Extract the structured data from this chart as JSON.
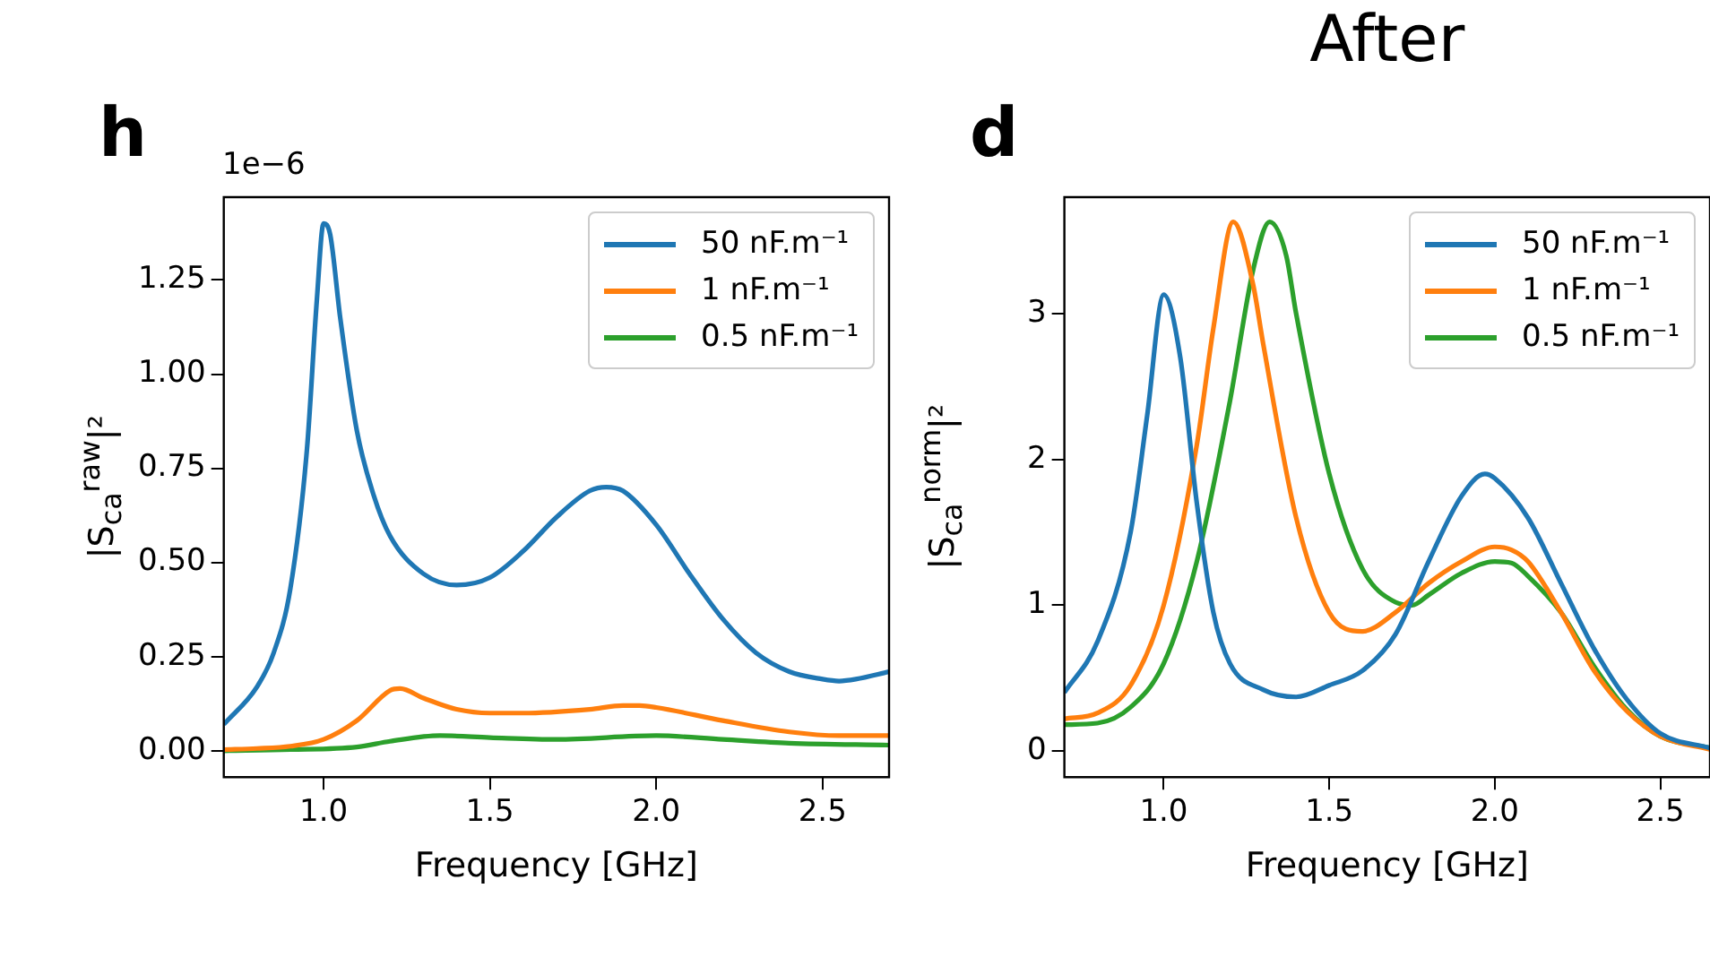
{
  "chart_data": [
    {
      "type": "line",
      "annotations": [
        "h",
        "1e−6"
      ],
      "xlabel": "Frequency [GHz]",
      "ylabel": "|S$_{ca}$$^{raw}$|²",
      "xlim": [
        0.7,
        2.7
      ],
      "ylim": [
        -0.07,
        1.47
      ],
      "xticks": [
        {
          "value": 1,
          "label": "1.0"
        },
        {
          "value": 1.5,
          "label": "1.5"
        },
        {
          "value": 2,
          "label": "2.0"
        },
        {
          "value": 2.5,
          "label": "2.5"
        }
      ],
      "yticks": [
        {
          "value": 0,
          "label": "0.00"
        },
        {
          "value": 0.25,
          "label": "0.25"
        },
        {
          "value": 0.5,
          "label": "0.50"
        },
        {
          "value": 0.75,
          "label": "0.75"
        },
        {
          "value": 1,
          "label": "1.00"
        },
        {
          "value": 1.25,
          "label": "1.25"
        }
      ],
      "grid": false,
      "legend": "top right",
      "marker": "none",
      "line_style": "solid",
      "series": [
        {
          "name": "50 nF.m⁻¹",
          "color": "#1f77b4",
          "x": [
            0.7,
            0.8,
            0.85,
            0.9,
            0.95,
            0.98,
            1.0,
            1.02,
            1.05,
            1.1,
            1.15,
            1.2,
            1.3,
            1.4,
            1.5,
            1.6,
            1.7,
            1.8,
            1.85,
            1.9,
            2.0,
            2.1,
            2.2,
            2.3,
            2.4,
            2.5,
            2.55,
            2.6,
            2.7
          ],
          "values": [
            0.07,
            0.17,
            0.26,
            0.43,
            0.8,
            1.2,
            1.4,
            1.37,
            1.15,
            0.85,
            0.68,
            0.57,
            0.47,
            0.44,
            0.46,
            0.53,
            0.62,
            0.69,
            0.7,
            0.69,
            0.6,
            0.47,
            0.35,
            0.26,
            0.21,
            0.19,
            0.185,
            0.19,
            0.21
          ]
        },
        {
          "name": "1 nF.m⁻¹",
          "color": "#ff7f0e",
          "x": [
            0.7,
            0.8,
            0.9,
            1.0,
            1.1,
            1.2,
            1.23,
            1.3,
            1.4,
            1.5,
            1.6,
            1.8,
            1.9,
            1.95,
            2.0,
            2.2,
            2.4,
            2.55,
            2.7
          ],
          "values": [
            0.003,
            0.006,
            0.012,
            0.03,
            0.08,
            0.16,
            0.165,
            0.14,
            0.11,
            0.1,
            0.1,
            0.11,
            0.12,
            0.12,
            0.115,
            0.08,
            0.05,
            0.04,
            0.04
          ]
        },
        {
          "name": "0.5 nF.m⁻¹",
          "color": "#2ca02c",
          "x": [
            0.7,
            0.9,
            1.1,
            1.2,
            1.35,
            1.5,
            1.7,
            2.0,
            2.2,
            2.4,
            2.7
          ],
          "values": [
            0.0,
            0.003,
            0.01,
            0.025,
            0.04,
            0.035,
            0.03,
            0.04,
            0.03,
            0.02,
            0.015
          ]
        }
      ]
    },
    {
      "type": "line",
      "title": "After",
      "annotations": [
        "d"
      ],
      "xlabel": "Frequency [GHz]",
      "ylabel": "|S$_{ca}$$^{norm}$|²",
      "xlim": [
        0.7,
        2.65
      ],
      "ylim": [
        -0.18,
        3.8
      ],
      "xticks": [
        {
          "value": 1,
          "label": "1.0"
        },
        {
          "value": 1.5,
          "label": "1.5"
        },
        {
          "value": 2,
          "label": "2.0"
        },
        {
          "value": 2.5,
          "label": "2.5"
        }
      ],
      "yticks": [
        0,
        1,
        2,
        3
      ],
      "grid": false,
      "legend": "top right",
      "marker": "none",
      "line_style": "solid",
      "series": [
        {
          "name": "50 nF.m⁻¹",
          "color": "#1f77b4",
          "x": [
            0.7,
            0.8,
            0.9,
            0.95,
            1.0,
            1.05,
            1.1,
            1.15,
            1.2,
            1.3,
            1.4,
            1.5,
            1.6,
            1.7,
            1.8,
            1.9,
            1.97,
            2.0,
            2.1,
            2.2,
            2.3,
            2.4,
            2.5,
            2.65
          ],
          "values": [
            0.4,
            0.75,
            1.5,
            2.3,
            3.13,
            2.7,
            1.7,
            0.95,
            0.6,
            0.42,
            0.37,
            0.45,
            0.55,
            0.8,
            1.3,
            1.75,
            1.9,
            1.87,
            1.6,
            1.15,
            0.7,
            0.35,
            0.12,
            0.02
          ]
        },
        {
          "name": "1 nF.m⁻¹",
          "color": "#ff7f0e",
          "x": [
            0.7,
            0.8,
            0.9,
            1.0,
            1.1,
            1.15,
            1.21,
            1.27,
            1.3,
            1.4,
            1.5,
            1.6,
            1.7,
            1.8,
            1.9,
            2.0,
            2.05,
            2.1,
            2.2,
            2.3,
            2.4,
            2.5,
            2.65
          ],
          "values": [
            0.22,
            0.26,
            0.45,
            1.0,
            2.1,
            2.9,
            3.63,
            3.2,
            2.8,
            1.6,
            0.95,
            0.82,
            0.95,
            1.15,
            1.3,
            1.4,
            1.38,
            1.3,
            0.95,
            0.55,
            0.27,
            0.1,
            0.01
          ]
        },
        {
          "name": "0.5 nF.m⁻¹",
          "color": "#2ca02c",
          "x": [
            0.7,
            0.8,
            0.9,
            1.0,
            1.1,
            1.2,
            1.27,
            1.32,
            1.37,
            1.4,
            1.5,
            1.6,
            1.7,
            1.75,
            1.8,
            1.9,
            2.0,
            2.05,
            2.1,
            2.2,
            2.3,
            2.4,
            2.5,
            2.65
          ],
          "values": [
            0.18,
            0.19,
            0.3,
            0.6,
            1.3,
            2.4,
            3.3,
            3.63,
            3.4,
            3.0,
            1.9,
            1.25,
            1.02,
            1.0,
            1.07,
            1.22,
            1.3,
            1.29,
            1.2,
            0.95,
            0.58,
            0.28,
            0.1,
            0.02
          ]
        }
      ]
    }
  ]
}
